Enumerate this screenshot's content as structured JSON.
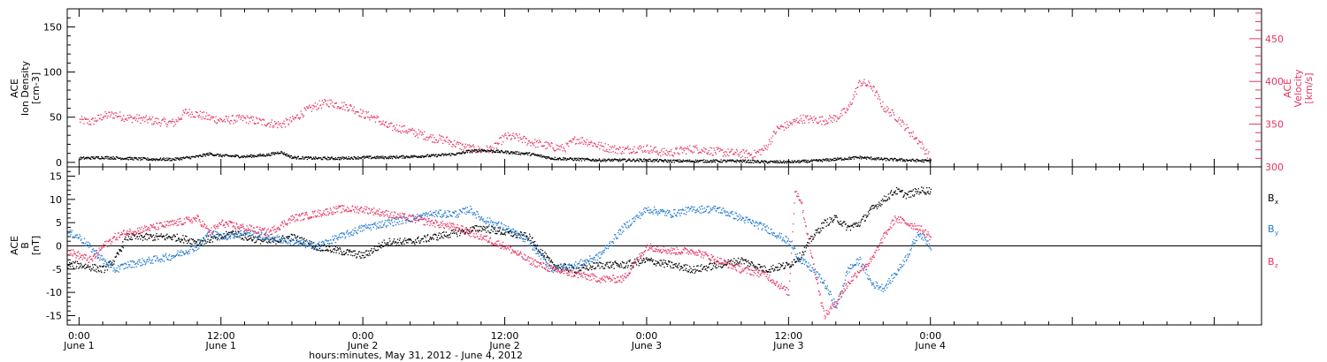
{
  "colors": {
    "black": "#000000",
    "pink": "#e8325f",
    "blue": "#1f78d1"
  },
  "x_axis": {
    "title": "hours:minutes, May 31, 2012 - June  4, 2012",
    "range_hours": [
      -1,
      100
    ],
    "ticks": [
      {
        "h": 0,
        "time": "0:00",
        "day": "June 1"
      },
      {
        "h": 12,
        "time": "12:00",
        "day": "June 1"
      },
      {
        "h": 24,
        "time": "0:00",
        "day": "June 2"
      },
      {
        "h": 36,
        "time": "12:00",
        "day": "June 2"
      },
      {
        "h": 48,
        "time": "0:00",
        "day": "June 3"
      },
      {
        "h": 60,
        "time": "12:00",
        "day": "June 3"
      },
      {
        "h": 72,
        "time": "0:00",
        "day": "June 4"
      }
    ]
  },
  "chart_data": [
    {
      "type": "scatter",
      "panel": "top",
      "ylabel_left": [
        "ACE",
        "Ion Density",
        "[cm-3]"
      ],
      "ylabel_right": [
        "ACE",
        "Velocity",
        "[km/s]"
      ],
      "ylim_left": [
        -5,
        170
      ],
      "yticks_left": [
        0,
        50,
        100,
        150
      ],
      "ylim_right": [
        300,
        485
      ],
      "yticks_right": [
        300,
        350,
        400,
        450
      ],
      "grid": false,
      "series": [
        {
          "axis": "left",
          "color": "#000000",
          "x": [
            0,
            2,
            4,
            6,
            8,
            10,
            11,
            12,
            14,
            16,
            17,
            18,
            20,
            22,
            24,
            26,
            28,
            30,
            32,
            33,
            34,
            36,
            38,
            40,
            42,
            44,
            46,
            48,
            50,
            52,
            54,
            56,
            58,
            60,
            62,
            64,
            66,
            68,
            70,
            72
          ],
          "y": [
            5,
            6,
            5,
            4,
            4,
            7,
            10,
            8,
            7,
            9,
            12,
            6,
            5,
            5,
            6,
            6,
            7,
            8,
            10,
            13,
            14,
            12,
            10,
            5,
            4,
            3,
            3,
            3,
            2,
            2,
            2,
            2,
            1,
            1,
            2,
            4,
            6,
            4,
            3,
            2
          ]
        },
        {
          "axis": "right",
          "color": "#e8325f",
          "x": [
            0,
            1,
            2,
            3,
            4,
            5,
            6,
            7,
            8,
            9,
            10,
            11,
            12,
            13,
            14,
            15,
            16,
            17,
            18,
            19,
            20,
            21,
            22,
            23,
            24,
            25,
            26,
            27,
            28,
            29,
            30,
            31,
            32,
            33,
            34,
            35,
            36,
            37,
            38,
            39,
            40,
            41,
            42,
            43,
            44,
            45,
            46,
            47,
            48,
            49,
            50,
            51,
            52,
            53,
            54,
            55,
            56,
            57,
            58,
            59,
            60,
            61,
            62,
            63,
            64,
            65,
            66,
            67,
            68,
            69,
            70,
            71,
            72
          ],
          "y": [
            355,
            353,
            360,
            362,
            358,
            357,
            355,
            353,
            352,
            365,
            362,
            358,
            355,
            356,
            357,
            354,
            352,
            350,
            355,
            365,
            372,
            376,
            373,
            370,
            362,
            358,
            348,
            346,
            342,
            338,
            334,
            332,
            326,
            322,
            320,
            322,
            336,
            335,
            330,
            327,
            324,
            322,
            333,
            330,
            325,
            322,
            320,
            322,
            322,
            318,
            317,
            320,
            322,
            320,
            318,
            317,
            316,
            315,
            322,
            345,
            350,
            357,
            356,
            355,
            358,
            368,
            400,
            395,
            370,
            360,
            345,
            330,
            310
          ]
        }
      ]
    },
    {
      "type": "scatter",
      "panel": "bottom",
      "ylabel_left": [
        "ACE",
        "B",
        "[nT]"
      ],
      "ylim": [
        -17,
        17
      ],
      "yticks": [
        -15,
        -10,
        -5,
        0,
        5,
        10,
        15
      ],
      "zero_line": true,
      "grid": false,
      "series": [
        {
          "name": "Bx",
          "label_main": "B",
          "label_sub": "x",
          "color": "#000000",
          "x": [
            -1,
            0,
            2,
            3,
            4,
            6,
            8,
            10,
            12,
            13,
            14,
            16,
            18,
            20,
            22,
            24,
            26,
            28,
            30,
            32,
            34,
            36,
            38,
            40,
            42,
            44,
            46,
            48,
            50,
            52,
            54,
            56,
            58,
            60,
            61,
            62,
            63,
            64,
            65,
            66,
            67,
            68,
            69,
            70,
            71,
            72
          ],
          "y": [
            -4,
            -4,
            -5,
            -3,
            2,
            2,
            2,
            1,
            2,
            3,
            2,
            1,
            2,
            0,
            -1,
            -2,
            1,
            1,
            2,
            3,
            4,
            3,
            2,
            -4,
            -5,
            -4,
            -4,
            -3,
            -4,
            -5,
            -4,
            -3,
            -5,
            -4,
            -2,
            2,
            5,
            6,
            4,
            5,
            8,
            10,
            12,
            11,
            12,
            12
          ]
        },
        {
          "name": "By",
          "label_main": "B",
          "label_sub": "y",
          "color": "#1f78d1",
          "x": [
            -1,
            0,
            2,
            3,
            4,
            6,
            8,
            10,
            11,
            12,
            14,
            16,
            18,
            20,
            22,
            24,
            26,
            28,
            30,
            32,
            33,
            34,
            36,
            38,
            40,
            42,
            44,
            46,
            48,
            50,
            52,
            54,
            56,
            58,
            60,
            61,
            62,
            63,
            64,
            65,
            66,
            67,
            68,
            69,
            70,
            71,
            72
          ],
          "y": [
            3,
            2,
            -3,
            -5,
            -4,
            -3,
            -2,
            0,
            3,
            2,
            3,
            2,
            1,
            0,
            2,
            4,
            5,
            6,
            7,
            7,
            8,
            6,
            4,
            1,
            -5,
            -4,
            -2,
            4,
            8,
            7,
            8,
            8,
            6,
            4,
            1,
            -3,
            -5,
            -8,
            -13,
            -5,
            -3,
            -8,
            -9,
            -6,
            -2,
            3,
            0
          ]
        },
        {
          "name": "Bz",
          "label_main": "B",
          "label_sub": "z",
          "color": "#e8325f",
          "x": [
            -1,
            0,
            1,
            2,
            3,
            4,
            6,
            8,
            10,
            11,
            12,
            14,
            16,
            18,
            20,
            22,
            24,
            26,
            28,
            30,
            32,
            34,
            36,
            38,
            40,
            42,
            44,
            46,
            48,
            50,
            52,
            54,
            56,
            58,
            60,
            60.5,
            61,
            62,
            63,
            64,
            65,
            66,
            67,
            68,
            69,
            70,
            71,
            72
          ],
          "y": [
            -1,
            -2,
            -3,
            0,
            2,
            3,
            4,
            5,
            6,
            3,
            5,
            4,
            3,
            6,
            7,
            8,
            8,
            7,
            6,
            5,
            4,
            2,
            0,
            -3,
            -5,
            -6,
            -7,
            -7,
            0,
            -1,
            -1,
            -3,
            -5,
            -6,
            -10,
            12,
            10,
            -3,
            -15,
            -12,
            -8,
            -5,
            -3,
            2,
            6,
            5,
            4,
            2
          ]
        }
      ]
    }
  ]
}
